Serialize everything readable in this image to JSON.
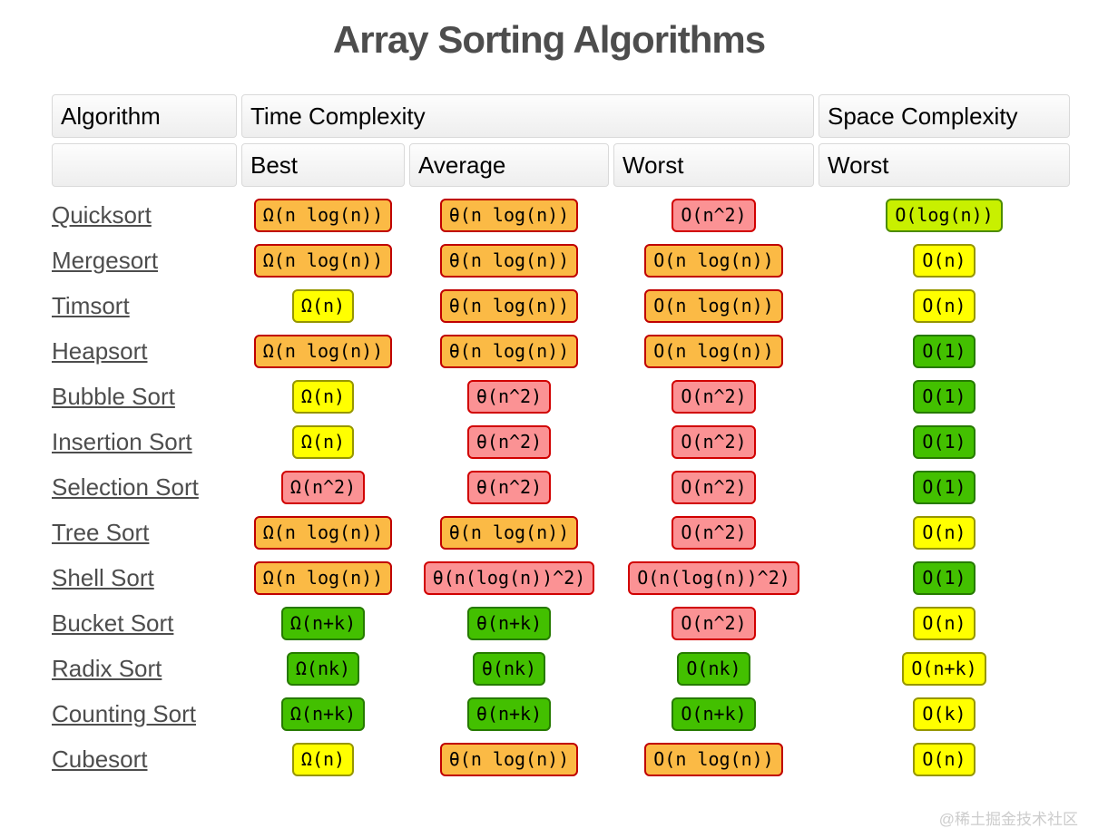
{
  "title": "Array Sorting Algorithms",
  "watermark": "@稀土掘金技术社区",
  "header": {
    "algorithm": "Algorithm",
    "time_complexity": "Time Complexity",
    "space_complexity": "Space Complexity",
    "best": "Best",
    "average": "Average",
    "worst": "Worst",
    "space_worst": "Worst"
  },
  "colors": {
    "excellent": {
      "bg": "#43C000",
      "border": "#267A00"
    },
    "good": {
      "bg": "#C8F000",
      "border": "#4C8C00"
    },
    "fair": {
      "bg": "#FFFF00",
      "border": "#969600"
    },
    "bad": {
      "bg": "#FBBA45",
      "border": "#C00000"
    },
    "horrible": {
      "bg": "#FB9294",
      "border": "#D10000"
    }
  },
  "rows": [
    {
      "name": "Quicksort",
      "best": {
        "text": "Ω(n log(n))",
        "rating": "bad"
      },
      "average": {
        "text": "θ(n log(n))",
        "rating": "bad"
      },
      "worst": {
        "text": "O(n^2)",
        "rating": "horrible"
      },
      "space": {
        "text": "O(log(n))",
        "rating": "good"
      }
    },
    {
      "name": "Mergesort",
      "best": {
        "text": "Ω(n log(n))",
        "rating": "bad"
      },
      "average": {
        "text": "θ(n log(n))",
        "rating": "bad"
      },
      "worst": {
        "text": "O(n log(n))",
        "rating": "bad"
      },
      "space": {
        "text": "O(n)",
        "rating": "fair"
      }
    },
    {
      "name": "Timsort",
      "best": {
        "text": "Ω(n)",
        "rating": "fair"
      },
      "average": {
        "text": "θ(n log(n))",
        "rating": "bad"
      },
      "worst": {
        "text": "O(n log(n))",
        "rating": "bad"
      },
      "space": {
        "text": "O(n)",
        "rating": "fair"
      }
    },
    {
      "name": "Heapsort",
      "best": {
        "text": "Ω(n log(n))",
        "rating": "bad"
      },
      "average": {
        "text": "θ(n log(n))",
        "rating": "bad"
      },
      "worst": {
        "text": "O(n log(n))",
        "rating": "bad"
      },
      "space": {
        "text": "O(1)",
        "rating": "excellent"
      }
    },
    {
      "name": "Bubble Sort",
      "best": {
        "text": "Ω(n)",
        "rating": "fair"
      },
      "average": {
        "text": "θ(n^2)",
        "rating": "horrible"
      },
      "worst": {
        "text": "O(n^2)",
        "rating": "horrible"
      },
      "space": {
        "text": "O(1)",
        "rating": "excellent"
      }
    },
    {
      "name": "Insertion Sort",
      "best": {
        "text": "Ω(n)",
        "rating": "fair"
      },
      "average": {
        "text": "θ(n^2)",
        "rating": "horrible"
      },
      "worst": {
        "text": "O(n^2)",
        "rating": "horrible"
      },
      "space": {
        "text": "O(1)",
        "rating": "excellent"
      }
    },
    {
      "name": "Selection Sort",
      "best": {
        "text": "Ω(n^2)",
        "rating": "horrible"
      },
      "average": {
        "text": "θ(n^2)",
        "rating": "horrible"
      },
      "worst": {
        "text": "O(n^2)",
        "rating": "horrible"
      },
      "space": {
        "text": "O(1)",
        "rating": "excellent"
      }
    },
    {
      "name": "Tree Sort",
      "best": {
        "text": "Ω(n log(n))",
        "rating": "bad"
      },
      "average": {
        "text": "θ(n log(n))",
        "rating": "bad"
      },
      "worst": {
        "text": "O(n^2)",
        "rating": "horrible"
      },
      "space": {
        "text": "O(n)",
        "rating": "fair"
      }
    },
    {
      "name": "Shell Sort",
      "best": {
        "text": "Ω(n log(n))",
        "rating": "bad"
      },
      "average": {
        "text": "θ(n(log(n))^2)",
        "rating": "horrible"
      },
      "worst": {
        "text": "O(n(log(n))^2)",
        "rating": "horrible"
      },
      "space": {
        "text": "O(1)",
        "rating": "excellent"
      }
    },
    {
      "name": "Bucket Sort",
      "best": {
        "text": "Ω(n+k)",
        "rating": "excellent"
      },
      "average": {
        "text": "θ(n+k)",
        "rating": "excellent"
      },
      "worst": {
        "text": "O(n^2)",
        "rating": "horrible"
      },
      "space": {
        "text": "O(n)",
        "rating": "fair"
      }
    },
    {
      "name": "Radix Sort",
      "best": {
        "text": "Ω(nk)",
        "rating": "excellent"
      },
      "average": {
        "text": "θ(nk)",
        "rating": "excellent"
      },
      "worst": {
        "text": "O(nk)",
        "rating": "excellent"
      },
      "space": {
        "text": "O(n+k)",
        "rating": "fair"
      }
    },
    {
      "name": "Counting Sort",
      "best": {
        "text": "Ω(n+k)",
        "rating": "excellent"
      },
      "average": {
        "text": "θ(n+k)",
        "rating": "excellent"
      },
      "worst": {
        "text": "O(n+k)",
        "rating": "excellent"
      },
      "space": {
        "text": "O(k)",
        "rating": "fair"
      }
    },
    {
      "name": "Cubesort",
      "best": {
        "text": "Ω(n)",
        "rating": "fair"
      },
      "average": {
        "text": "θ(n log(n))",
        "rating": "bad"
      },
      "worst": {
        "text": "O(n log(n))",
        "rating": "bad"
      },
      "space": {
        "text": "O(n)",
        "rating": "fair"
      }
    }
  ]
}
